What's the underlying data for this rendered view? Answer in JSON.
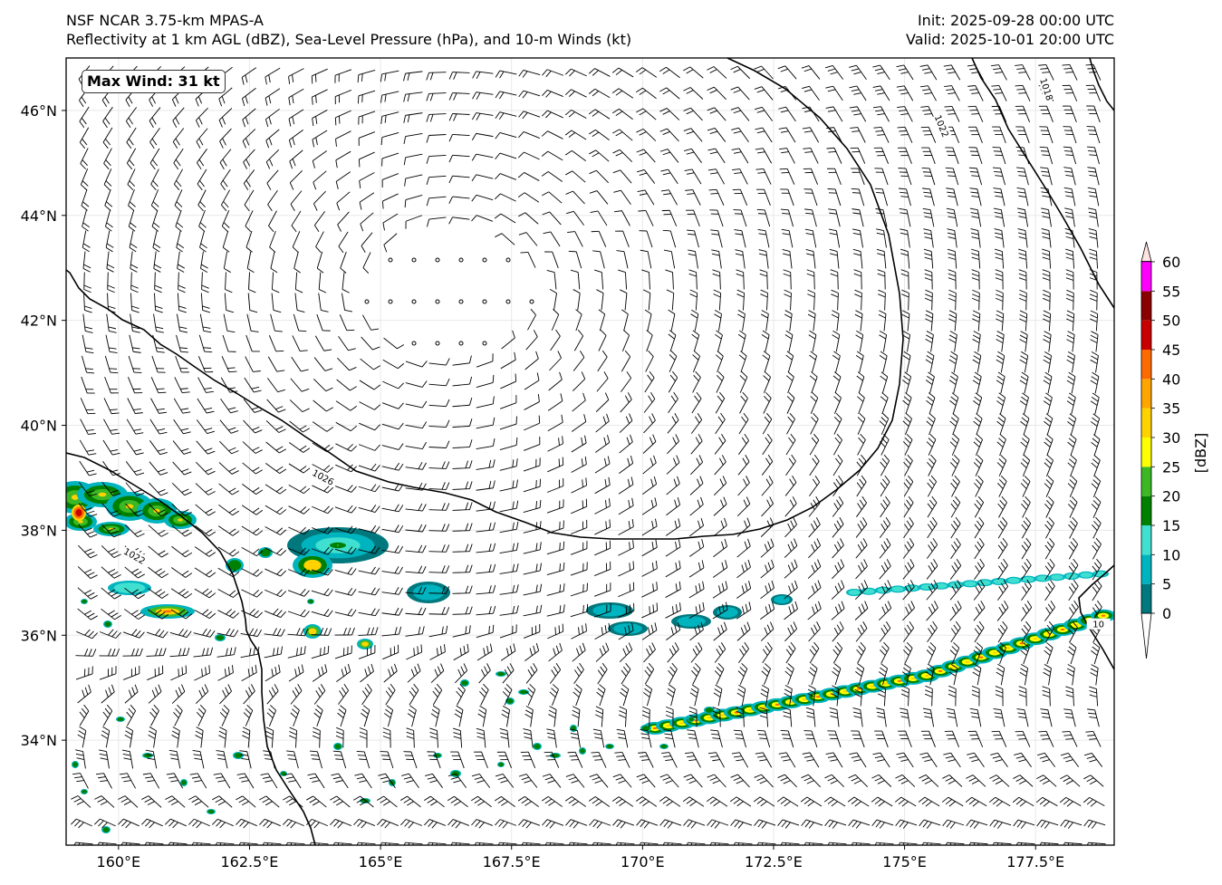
{
  "header": {
    "title_line1": "NSF NCAR 3.75-km MPAS-A",
    "title_line2": "Reflectivity at 1 km AGL (dBZ), Sea-Level Pressure (hPa), and 10-m Winds (kt)",
    "init": "Init: 2025-09-28 00:00 UTC",
    "valid": "Valid: 2025-10-01 20:00 UTC"
  },
  "annotation": {
    "max_wind": "Max Wind: 31 kt"
  },
  "map": {
    "lon_range": [
      159.0,
      179.0
    ],
    "lat_range": [
      32.0,
      47.0
    ],
    "lon_ticks": [
      {
        "value": 160.0,
        "label": "160°E"
      },
      {
        "value": 162.5,
        "label": "162.5°E"
      },
      {
        "value": 165.0,
        "label": "165°E"
      },
      {
        "value": 167.5,
        "label": "167.5°E"
      },
      {
        "value": 170.0,
        "label": "170°E"
      },
      {
        "value": 172.5,
        "label": "172.5°E"
      },
      {
        "value": 175.0,
        "label": "175°E"
      },
      {
        "value": 177.5,
        "label": "177.5°E"
      }
    ],
    "lat_ticks": [
      {
        "value": 34,
        "label": "34°N"
      },
      {
        "value": 36,
        "label": "36°N"
      },
      {
        "value": 38,
        "label": "38°N"
      },
      {
        "value": 40,
        "label": "40°N"
      },
      {
        "value": 42,
        "label": "42°N"
      },
      {
        "value": 44,
        "label": "44°N"
      },
      {
        "value": 46,
        "label": "46°N"
      }
    ],
    "isobar_labels": [
      {
        "text": "1026",
        "lon": 163.9,
        "lat": 39.0
      },
      {
        "text": "1022",
        "lon": 160.3,
        "lat": 37.5
      },
      {
        "text": "1022",
        "lon": 175.7,
        "lat": 45.7
      },
      {
        "text": "1018",
        "lon": 177.7,
        "lat": 46.4
      },
      {
        "text": "10",
        "lon": 178.7,
        "lat": 36.2
      }
    ],
    "high_center": {
      "lon": 166.3,
      "lat": 42.6
    }
  },
  "colorbar": {
    "label": "[dBZ]",
    "ticks": [
      "0",
      "5",
      "10",
      "15",
      "20",
      "25",
      "30",
      "35",
      "40",
      "45",
      "50",
      "55",
      "60"
    ],
    "colors": [
      "#00787d",
      "#00b4bf",
      "#40e0d0",
      "#008000",
      "#3cb825",
      "#ffff00",
      "#ffd200",
      "#ffa500",
      "#ff6a00",
      "#c80000",
      "#8b0000",
      "#ff00ff",
      "#ffe4e1"
    ]
  }
}
